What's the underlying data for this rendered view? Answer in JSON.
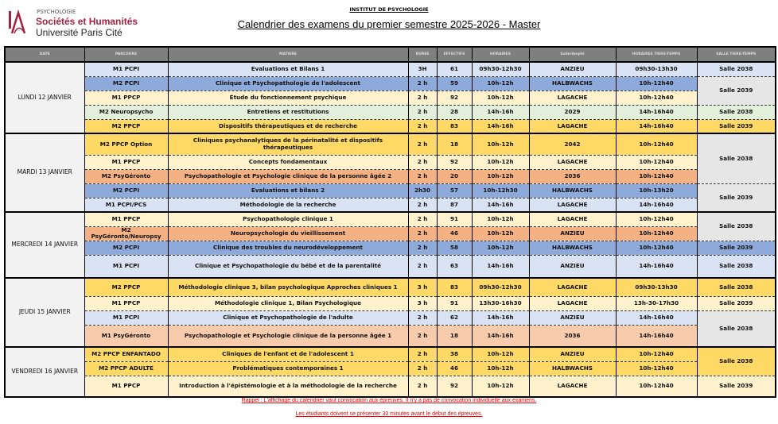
{
  "header": {
    "logo_small": "PSYCHOLOGIE",
    "logo_line1": "Sociétés et Humanités",
    "logo_line2": "Université Paris Cité",
    "institute": "INSTITUT DE PSYCHOLOGIE",
    "title": "Calendrier des examens du premier semestre 2025-2026 - Master"
  },
  "colors": {
    "header_bg": "#7f7f7f",
    "date_bg": "#f2f2f2",
    "merged_salle_bg": "#e7e6e6",
    "notes": "#e00000",
    "logo": "#a3223e"
  },
  "columns": [
    "DATE",
    "PARCOURS",
    "MATIERE",
    "DUREE",
    "EFFECTIFS",
    "HORAIRES",
    "Salle/Amphi",
    "HORAIRES TIERS-TEMPS",
    "SALLE TIERS-TEMPS"
  ],
  "days": [
    {
      "date": "LUNDI 12 JANVIER",
      "rows": [
        {
          "parcours": "M1 PCPI",
          "matiere": "Evaluations et Bilans 1",
          "duree": "3H",
          "effectif": "61",
          "horaires": "09h30-12h30",
          "salle": "ANZIEU",
          "horaires_tt": "09h30-13h30",
          "color": "#dae3f3"
        },
        {
          "parcours": "M2 PCPI",
          "matiere": "Clinique et Psychopathologie de l'adolescent",
          "duree": "2 h",
          "effectif": "59",
          "horaires": "10h-12h",
          "salle": "HALBWACHS",
          "horaires_tt": "10h-12h40",
          "color": "#8eaadb"
        },
        {
          "parcours": "M1 PPCP",
          "matiere": "Étude du fonctionnement psychique",
          "duree": "2 h",
          "effectif": "92",
          "horaires": "10h-12h",
          "salle": "LAGACHE",
          "horaires_tt": "10h-12h40",
          "color": "#fff2cc"
        },
        {
          "parcours": "M2 Neuropsycho",
          "matiere": "Entretiens et restitutions",
          "duree": "2 h",
          "effectif": "28",
          "horaires": "14h-16h",
          "salle": "2029",
          "horaires_tt": "14h-16h40",
          "color": "#e2efda"
        },
        {
          "parcours": "M2 PPCP",
          "matiere": "Dispositifs thérapeutiques et de recherche",
          "duree": "2 h",
          "effectif": "83",
          "horaires": "14h-16h",
          "salle": "LAGACHE",
          "horaires_tt": "14h-16h40",
          "color": "#ffd966"
        }
      ],
      "salles_tt": [
        {
          "label": "Salle 2038",
          "rows": 1,
          "color": "#dae3f3"
        },
        {
          "label": "Salle 2039",
          "rows": 2,
          "color": "#e7e6e6"
        },
        {
          "label": "Salle 2038",
          "rows": 1,
          "color": "#e2efda"
        },
        {
          "label": "Salle 2039",
          "rows": 1,
          "color": "#ffd966"
        }
      ]
    },
    {
      "date": "MARDI 13 JANVIER",
      "rows": [
        {
          "parcours": "M2 PPCP Option",
          "matiere": "Cliniques psychanalytiques de la périnatalité et dispositifs thérapeutiques",
          "duree": "2 h",
          "effectif": "18",
          "horaires": "10h-12h",
          "salle": "2042",
          "horaires_tt": "10h-12h40",
          "color": "#ffd966"
        },
        {
          "parcours": "M1 PPCP",
          "matiere": "Concepts fondamentaux",
          "duree": "2 h",
          "effectif": "92",
          "horaires": "10h-12h",
          "salle": "LAGACHE",
          "horaires_tt": "10h-12h40",
          "color": "#fff2cc"
        },
        {
          "parcours": "M2 PsyGéronto",
          "matiere": "Psychopathologie et Psychologie clinique de la personne âgée 2",
          "duree": "2 h",
          "effectif": "20",
          "horaires": "10h-12h",
          "salle": "2036",
          "horaires_tt": "10h-12h40",
          "color": "#f4b183"
        },
        {
          "parcours": "M2 PCPI",
          "matiere": "Evaluations et bilans 2",
          "duree": "2h30",
          "effectif": "57",
          "horaires": "10h-12h30",
          "salle": "HALBWACHS",
          "horaires_tt": "10h-13h20",
          "color": "#8eaadb"
        },
        {
          "parcours": "M1 PCPI/PCS",
          "matiere": "Méthodologie de la recherche",
          "duree": "2 h",
          "effectif": "87",
          "horaires": "14h-16h",
          "salle": "LAGACHE",
          "horaires_tt": "14h-16h40",
          "color": "#dae3f3"
        }
      ],
      "salles_tt": [
        {
          "label": "Salle 2038",
          "rows": 3,
          "color": "#e7e6e6"
        },
        {
          "label": "Salle 2039",
          "rows": 2,
          "color": "#e7e6e6"
        }
      ]
    },
    {
      "date": "MERCREDI 14 JANVIER",
      "rows": [
        {
          "parcours": "M1 PPCP",
          "matiere": "Psychopathologie clinique 1",
          "duree": "2 h",
          "effectif": "91",
          "horaires": "10h-12h",
          "salle": "LAGACHE",
          "horaires_tt": "10h-12h40",
          "color": "#fff2cc"
        },
        {
          "parcours": "M2 PsyGéronto/Neuropsy",
          "matiere": "Neuropsychologie du vieillissement",
          "duree": "2 h",
          "effectif": "46",
          "horaires": "10h-12h",
          "salle": "ANZIEU",
          "horaires_tt": "10h-12h40",
          "color": "#f4b183"
        },
        {
          "parcours": "M2 PCPI",
          "matiere": "Clinique des troubles du neurodéveloppement",
          "duree": "2 h",
          "effectif": "58",
          "horaires": "10h-12h",
          "salle": "HALBWACHS",
          "horaires_tt": "10h-12h40",
          "color": "#8eaadb"
        },
        {
          "parcours": "M1 PCPI",
          "matiere": "Clinique et Psychopathologie du bébé et de la parentalité",
          "duree": "2 h",
          "effectif": "63",
          "horaires": "14h-16h",
          "salle": "ANZIEU",
          "horaires_tt": "14h-16h40",
          "color": "#dae3f3"
        }
      ],
      "salles_tt": [
        {
          "label": "Salle 2038",
          "rows": 2,
          "color": "#e7e6e6"
        },
        {
          "label": "Salle 2039",
          "rows": 1,
          "color": "#8eaadb"
        },
        {
          "label": "Salle 2038",
          "rows": 1,
          "color": "#dae3f3"
        }
      ]
    },
    {
      "date": "JEUDI 15 JANVIER",
      "rows": [
        {
          "parcours": "M2 PPCP",
          "matiere": "Méthodologie clinique 3, bilan psychologique Approches cliniques 1",
          "duree": "3 h",
          "effectif": "83",
          "horaires": "09h30-12h30",
          "salle": "LAGACHE",
          "horaires_tt": "09h30-13h30",
          "color": "#ffd966"
        },
        {
          "parcours": "M1 PPCP",
          "matiere": "Méthodologie clinique 1, Bilan Psychologique",
          "duree": "3 h",
          "effectif": "91",
          "horaires": "13h30-16h30",
          "salle": "LAGACHE",
          "horaires_tt": "13h-30-17h30",
          "color": "#fff2cc"
        },
        {
          "parcours": "M1 PCPI",
          "matiere": "Clinique et Psychopathologie de l'adulte",
          "duree": "2 h",
          "effectif": "62",
          "horaires": "14h-16h",
          "salle": "ANZIEU",
          "horaires_tt": "14h-16h40",
          "color": "#dae3f3"
        },
        {
          "parcours": "M1 PsyGéronto",
          "matiere": "Psychopathologie et Psychologie clinique de la personne âgée 1",
          "duree": "2 h",
          "effectif": "18",
          "horaires": "14h-16h",
          "salle": "2036",
          "horaires_tt": "14h-16h40",
          "color": "#f8cbad"
        }
      ],
      "salles_tt": [
        {
          "label": "Salle 2038",
          "rows": 1,
          "color": "#ffd966"
        },
        {
          "label": "Salle 2039",
          "rows": 1,
          "color": "#fff2cc"
        },
        {
          "label": "Salle 2038",
          "rows": 2,
          "color": "#e7e6e6"
        }
      ]
    },
    {
      "date": "VENDREDI 16 JANVIER",
      "rows": [
        {
          "parcours": "M2 PPCP ENFANTADO",
          "matiere": "Cliniques de l'enfant et de l'adolescent 1",
          "duree": "2 h",
          "effectif": "38",
          "horaires": "10h-12h",
          "salle": "ANZIEU",
          "horaires_tt": "10h-12h40",
          "color": "#ffd966"
        },
        {
          "parcours": "M2 PPCP ADULTE",
          "matiere": "Problématiques contemporaines 1",
          "duree": "2 h",
          "effectif": "46",
          "horaires": "10h-12h",
          "salle": "HALBWACHS",
          "horaires_tt": "10h-12h40",
          "color": "#ffd966"
        },
        {
          "parcours": "M1 PPCP",
          "matiere": "Introduction à l'épistémologie et à la méthodologie de la recherche",
          "duree": "2 h",
          "effectif": "92",
          "horaires": "10h-12h",
          "salle": "LAGACHE",
          "horaires_tt": "10h-12h40",
          "color": "#fff2cc"
        }
      ],
      "salles_tt": [
        {
          "label": "Salle 2038",
          "rows": 2,
          "color": "#ffd966"
        },
        {
          "label": "Salle 2039",
          "rows": 1,
          "color": "#fff2cc"
        }
      ]
    }
  ],
  "notes": {
    "line1": "Rappel : L'affichage du calendrier vaut convocation aux épreuves. Il n'y a pas de convocation individuelle aux examens.",
    "line2": "Les étudiants doivent se présenter 30 minutes avant le début des épreuves."
  }
}
